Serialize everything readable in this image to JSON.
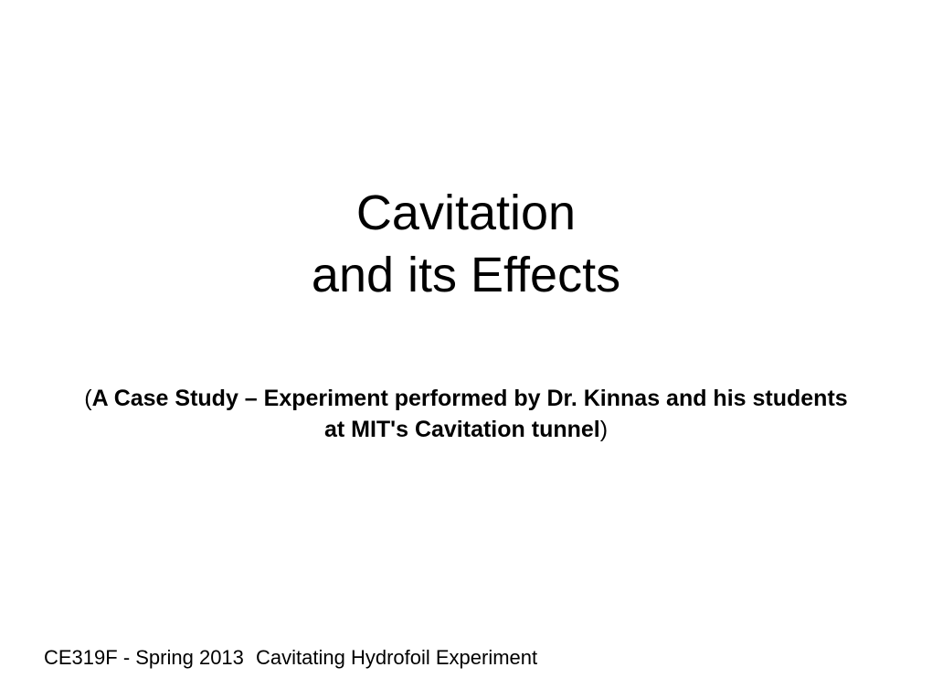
{
  "title": {
    "line1": "Cavitation",
    "line2": "and its Effects",
    "font_size": 54,
    "font_weight": 400,
    "color": "#000000"
  },
  "subtitle": {
    "open_paren": "(",
    "text": "A Case Study – Experiment performed by Dr. Kinnas and his students at MIT's Cavitation tunnel",
    "close_paren": ")",
    "font_size": 25,
    "font_weight": 700,
    "color": "#000000"
  },
  "footer": {
    "left": "CE319F - Spring 2013",
    "center": "Cavitating Hydrofoil Experiment",
    "font_size": 22,
    "color": "#000000"
  },
  "background_color": "#ffffff"
}
